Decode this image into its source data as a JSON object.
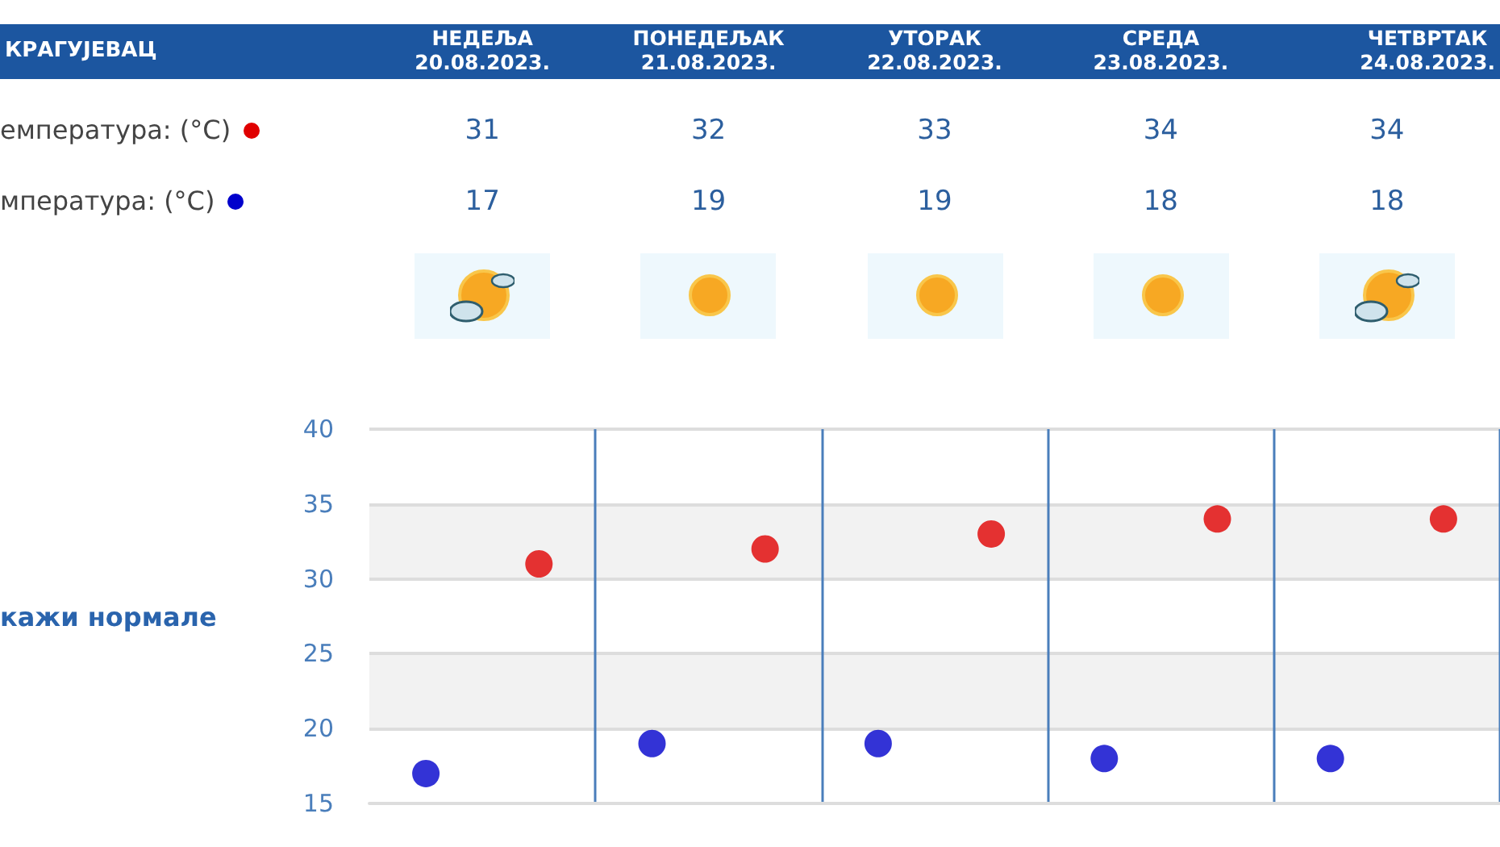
{
  "chart_data": {
    "type": "scatter",
    "annotations": [
      "КРАГУЈЕВАЦ",
      "НЕДЕЉА\n20.08.2023.",
      "ПОНЕДЕЉАК\n21.08.2023.",
      "УТОРАК\n22.08.2023.",
      "СРЕДА\n23.08.2023.",
      "ЧЕТВРТАК\n24.08.2023.",
      "кажи нормале"
    ],
    "categories": [
      null,
      null,
      null,
      null,
      null
    ],
    "series": [
      {
        "name": "емпература: (°C)",
        "color": "#e00000",
        "values": [
          31,
          32,
          33,
          34,
          34
        ]
      },
      {
        "name": "мпература: (°C)",
        "color": "#0000cc",
        "values": [
          17,
          19,
          19,
          18,
          18
        ]
      }
    ],
    "ylim": [
      15,
      40
    ],
    "yticks": [
      15,
      20,
      25,
      30,
      35,
      40
    ],
    "grid": true,
    "marker": "circle",
    "data_labels": true,
    "tick_labels": "y",
    "legend": "top left"
  }
}
